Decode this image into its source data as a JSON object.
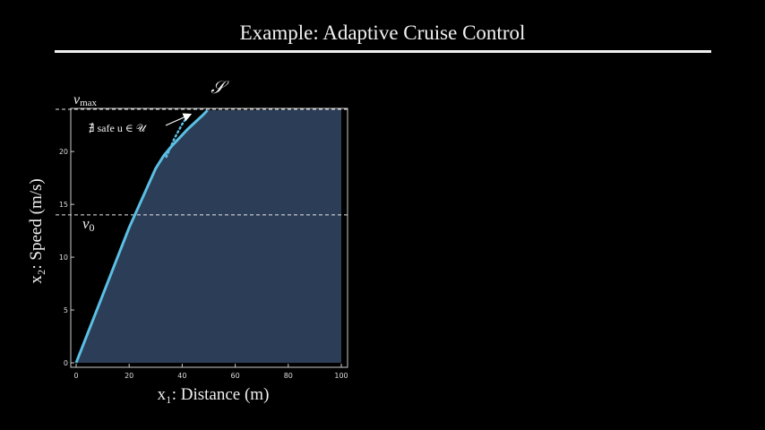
{
  "slide": {
    "title": "Example: Adaptive Cruise Control"
  },
  "chart_data": {
    "type": "area",
    "xlabel": "x₁: Distance (m)",
    "ylabel": "x₂: Speed (m/s)",
    "xlim": [
      0,
      100
    ],
    "ylim": [
      0,
      24
    ],
    "xticks": [
      0,
      20,
      40,
      60,
      80,
      100
    ],
    "yticks": [
      0,
      5,
      10,
      15,
      20
    ],
    "grid": false,
    "colors": {
      "region_fill": "#2b3d57",
      "boundary": "#5bbfe3",
      "axes": "#cccccc",
      "annotation": "#ffffff"
    },
    "series": [
      {
        "name": "S",
        "x": [
          0,
          10,
          20,
          30,
          33,
          36,
          39,
          42,
          45,
          48,
          49.5
        ],
        "y": [
          0,
          6.4,
          12.8,
          18.4,
          19.6,
          20.5,
          21.3,
          22.1,
          22.8,
          23.5,
          23.9
        ]
      }
    ],
    "dotted_segment": {
      "x": [
        34,
        37,
        40,
        42.5
      ],
      "y": [
        19.5,
        21.2,
        22.6,
        23.5
      ]
    },
    "reference_lines": [
      {
        "y": 24,
        "label_main": "v",
        "label_sub": "max"
      },
      {
        "y": 14,
        "label_main": "v",
        "label_sub": "0"
      }
    ],
    "annotation": {
      "text": "∄ safe u ∈ 𝒰",
      "point_to": {
        "x": 44,
        "y": 23.2
      }
    },
    "set_label": "𝒮"
  }
}
